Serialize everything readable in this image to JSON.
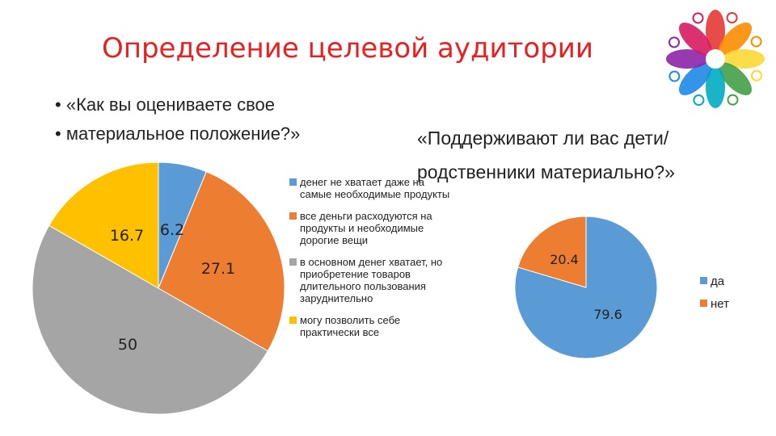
{
  "title": "Определение целевой аудитории",
  "question1": [
    "«Как вы оцениваете свое",
    "материальное  положение?»"
  ],
  "question2": [
    "«Поддерживают ли вас дети/",
    "родственники материально?»"
  ],
  "chart_data": [
    {
      "type": "pie",
      "categories": [
        "денег не хватает даже на самые необходимые продукты",
        "все деньги расходуются на продукты и необходимые дорогие вещи",
        "в основном денег хватает, но приобретение товаров длительного пользования зарyднительно",
        "могу позволить себе практически все"
      ],
      "values": [
        6.2,
        27.1,
        50,
        16.7
      ],
      "labels": [
        "6.2",
        "27.1",
        "50",
        "16.7"
      ],
      "colors": [
        "#5b9bd5",
        "#ed7d31",
        "#a5a5a5",
        "#ffc000"
      ],
      "legend": "right"
    },
    {
      "type": "pie",
      "categories": [
        "да",
        "нет"
      ],
      "values": [
        79.6,
        20.4
      ],
      "labels": [
        "79.6",
        "20.4"
      ],
      "colors": [
        "#5b9bd5",
        "#ed7d31"
      ],
      "legend": "right"
    }
  ],
  "logo": {
    "icon": "people-circle-logo-icon",
    "colors": [
      "#e53935",
      "#fb8c00",
      "#fdd835",
      "#43a047",
      "#00acc1",
      "#1e88e5",
      "#8e24aa",
      "#d81b60"
    ]
  }
}
